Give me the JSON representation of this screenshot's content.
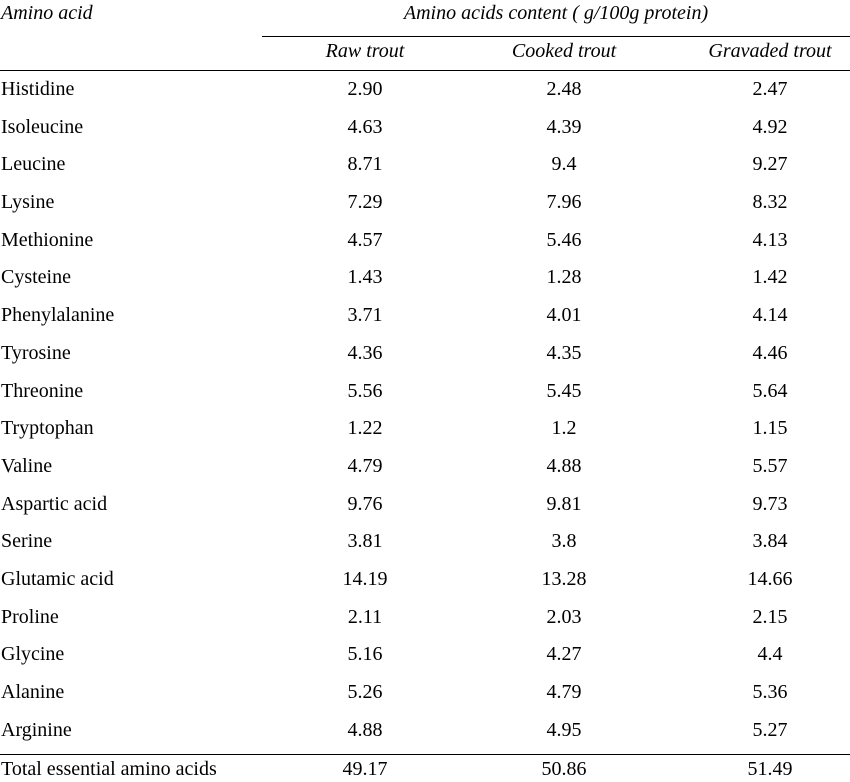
{
  "table": {
    "header": {
      "amino_acid_label": "Amino acid",
      "content_label": "Amino acids content ( g/100g protein)",
      "columns": [
        "Raw trout",
        "Cooked trout",
        "Gravaded trout"
      ]
    },
    "rows": [
      {
        "name": "Histidine",
        "values": [
          "2.90",
          "2.48",
          "2.47"
        ]
      },
      {
        "name": "Isoleucine",
        "values": [
          "4.63",
          "4.39",
          "4.92"
        ]
      },
      {
        "name": "Leucine",
        "values": [
          "8.71",
          "9.4",
          "9.27"
        ]
      },
      {
        "name": "Lysine",
        "values": [
          "7.29",
          "7.96",
          "8.32"
        ]
      },
      {
        "name": "Methionine",
        "values": [
          "4.57",
          "5.46",
          "4.13"
        ]
      },
      {
        "name": "Cysteine",
        "values": [
          "1.43",
          "1.28",
          "1.42"
        ]
      },
      {
        "name": "Phenylalanine",
        "values": [
          "3.71",
          "4.01",
          "4.14"
        ]
      },
      {
        "name": "Tyrosine",
        "values": [
          "4.36",
          "4.35",
          "4.46"
        ]
      },
      {
        "name": "Threonine",
        "values": [
          "5.56",
          "5.45",
          "5.64"
        ]
      },
      {
        "name": "Tryptophan",
        "values": [
          "1.22",
          "1.2",
          "1.15"
        ]
      },
      {
        "name": "Valine",
        "values": [
          "4.79",
          "4.88",
          "5.57"
        ]
      },
      {
        "name": "Aspartic acid",
        "values": [
          "9.76",
          "9.81",
          "9.73"
        ]
      },
      {
        "name": "Serine",
        "values": [
          "3.81",
          "3.8",
          "3.84"
        ]
      },
      {
        "name": "Glutamic acid",
        "values": [
          "14.19",
          "13.28",
          "14.66"
        ]
      },
      {
        "name": "Proline",
        "values": [
          "2.11",
          "2.03",
          "2.15"
        ]
      },
      {
        "name": "Glycine",
        "values": [
          "5.16",
          "4.27",
          "4.4"
        ]
      },
      {
        "name": "Alanine",
        "values": [
          "5.26",
          "4.79",
          "5.36"
        ]
      },
      {
        "name": "Arginine",
        "values": [
          "4.88",
          "4.95",
          "5.27"
        ]
      }
    ],
    "total": {
      "name": "Total essential amino acids",
      "values": [
        "49.17",
        "50.86",
        "51.49"
      ]
    }
  }
}
